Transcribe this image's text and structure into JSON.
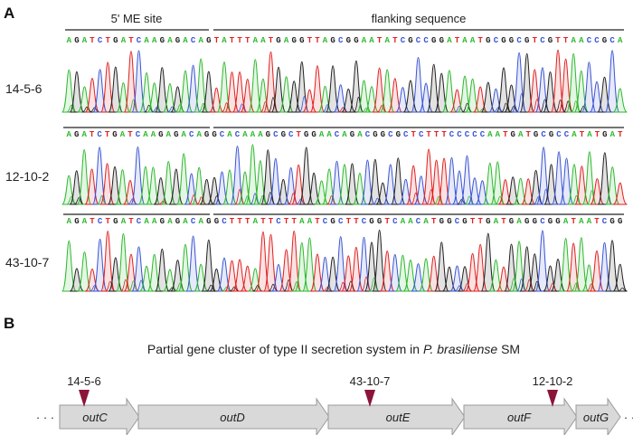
{
  "panel_a": {
    "letter": "A",
    "header_left": "5' ME site",
    "header_right": "flanking sequence",
    "traces": [
      {
        "sample": "14-5-6",
        "sequence": "AGATCTGATCAAGAGACAGTATTTAATGAGGTTAGCGGAATATCGCCGGATAATGCGGCGTCGTTAACCGCA",
        "me_len": 19
      },
      {
        "sample": "12-10-2",
        "sequence": "AGATCTGATCAAGAGACAGGCACAAAGCGCTGGAACAGACGGCGCTCTTTCCCCCAATGATGCGCCATATGAT",
        "me_len": 19
      },
      {
        "sample": "43-10-7",
        "sequence": "AGATCTGATCAAGAGACAGGCTTTATTCTTAATCGCTTCGGTCAACATGGCGTTGATGAGGCGGATAATCGG",
        "me_len": 19
      }
    ]
  },
  "panel_b": {
    "letter": "B",
    "title_prefix": "Partial gene cluster of type II secretion system in ",
    "title_species": "P. brasiliense",
    "title_suffix": " SM",
    "genes": [
      "outC",
      "outD",
      "outE",
      "outF",
      "outG"
    ],
    "insertions": [
      "14-5-6",
      "43-10-7",
      "12-10-2"
    ],
    "dots": "· · ·"
  },
  "colors": {
    "A": "#2eb82e",
    "C": "#3a55d4",
    "G": "#222222",
    "T": "#e02020",
    "arrow_fill": "#d9d9d9",
    "arrow_stroke": "#9a9a9a",
    "marker": "#8b1538"
  }
}
